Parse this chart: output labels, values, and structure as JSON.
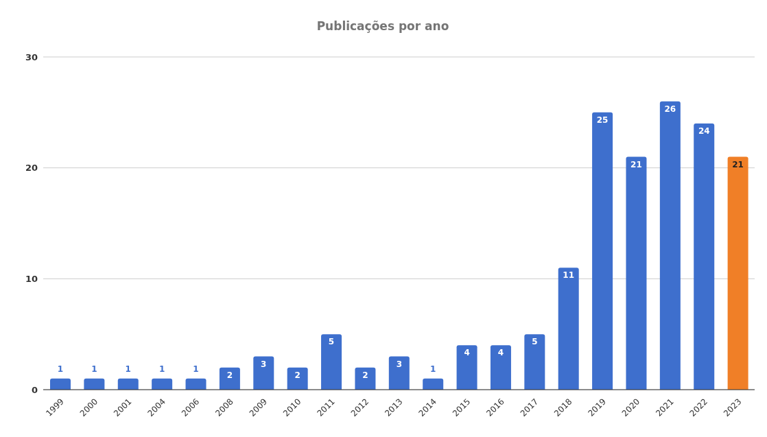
{
  "chart_data": {
    "type": "bar",
    "title": "Publicações por ano",
    "categories": [
      "1999",
      "2000",
      "2001",
      "2004",
      "2006",
      "2008",
      "2009",
      "2010",
      "2011",
      "2012",
      "2013",
      "2014",
      "2015",
      "2016",
      "2017",
      "2018",
      "2019",
      "2020",
      "2021",
      "2022",
      "2023"
    ],
    "values": [
      1,
      1,
      1,
      1,
      1,
      2,
      3,
      2,
      5,
      2,
      3,
      1,
      4,
      4,
      5,
      11,
      25,
      21,
      26,
      24,
      21
    ],
    "colors": [
      "#3e6fcd",
      "#3e6fcd",
      "#3e6fcd",
      "#3e6fcd",
      "#3e6fcd",
      "#3e6fcd",
      "#3e6fcd",
      "#3e6fcd",
      "#3e6fcd",
      "#3e6fcd",
      "#3e6fcd",
      "#3e6fcd",
      "#3e6fcd",
      "#3e6fcd",
      "#3e6fcd",
      "#3e6fcd",
      "#3e6fcd",
      "#3e6fcd",
      "#3e6fcd",
      "#3e6fcd",
      "#f07f27"
    ],
    "ylim": [
      0,
      30
    ],
    "yticks": [
      0,
      10,
      20,
      30
    ],
    "grid": "y",
    "data_labels": true
  }
}
